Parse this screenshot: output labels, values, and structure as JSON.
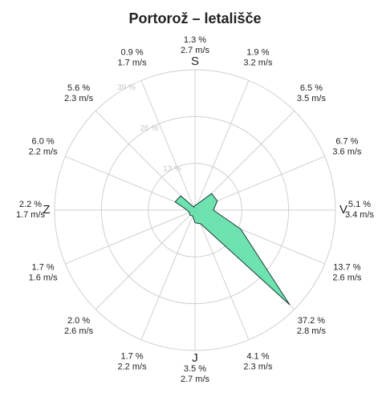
{
  "chart_data": {
    "type": "windrose",
    "title": "Portorož – letališče",
    "compass_labels": [
      "S",
      "V",
      "J",
      "Z"
    ],
    "values": [
      1.3,
      1.9,
      6.5,
      6.7,
      5.1,
      13.7,
      37.2,
      4.1,
      3.5,
      1.7,
      2.0,
      1.7,
      2.2,
      6.0,
      5.6,
      0.9
    ],
    "value_labels": [
      "1.3 %",
      "1.9 %",
      "6.5 %",
      "6.7 %",
      "5.1 %",
      "13.7 %",
      "37.2 %",
      "4.1 %",
      "3.5 %",
      "1.7 %",
      "2.0 %",
      "1.7 %",
      "2.2 %",
      "6.0 %",
      "5.6 %",
      "0.9 %"
    ],
    "speeds": [
      2.7,
      3.2,
      3.5,
      3.6,
      3.4,
      2.6,
      2.8,
      2.3,
      2.7,
      2.2,
      2.6,
      1.6,
      1.7,
      2.2,
      2.3,
      1.7
    ],
    "speed_labels": [
      "2.7 m/s",
      "3.2 m/s",
      "3.5 m/s",
      "3.6 m/s",
      "3.4 m/s",
      "2.6 m/s",
      "2.8 m/s",
      "2.3 m/s",
      "2.7 m/s",
      "2.2 m/s",
      "2.6 m/s",
      "1.6 m/s",
      "1.7 m/s",
      "2.2 m/s",
      "2.3 m/s",
      "1.7 m/s"
    ],
    "rlim": [
      0,
      39
    ],
    "rticks": [
      {
        "value": 13,
        "label": "13 %"
      },
      {
        "value": 26,
        "label": "26 %"
      },
      {
        "value": 39,
        "label": "39 %"
      }
    ],
    "color": "#5fe0a6",
    "grid": true
  }
}
